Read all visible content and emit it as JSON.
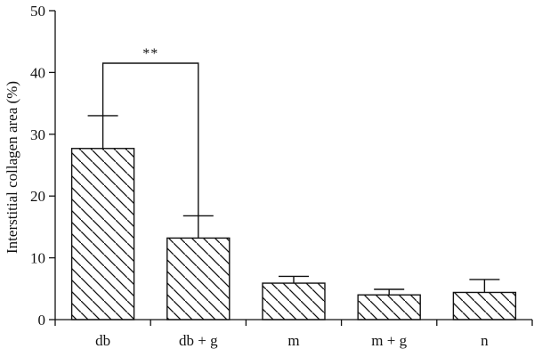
{
  "chart_data": {
    "type": "bar",
    "title": "",
    "xlabel": "",
    "ylabel": "Interstitial collagen area (%)",
    "categories": [
      "db",
      "db + g",
      "m",
      "m + g",
      "n"
    ],
    "values": [
      27.7,
      13.2,
      5.9,
      4.0,
      4.4
    ],
    "errors": [
      5.3,
      3.6,
      1.1,
      0.9,
      2.1
    ],
    "ylim": [
      0,
      50
    ],
    "yticks": [
      0,
      10,
      20,
      30,
      40,
      50
    ],
    "grid": false,
    "bar_fill": "diagonal-hatch",
    "colors": {
      "bar_stroke": "#111111",
      "hatch": "#111111",
      "axis": "#111111"
    },
    "annotations": [
      {
        "type": "significance-bracket",
        "from": "db",
        "to": "db + g",
        "y": 41.5,
        "label": "**"
      }
    ]
  }
}
